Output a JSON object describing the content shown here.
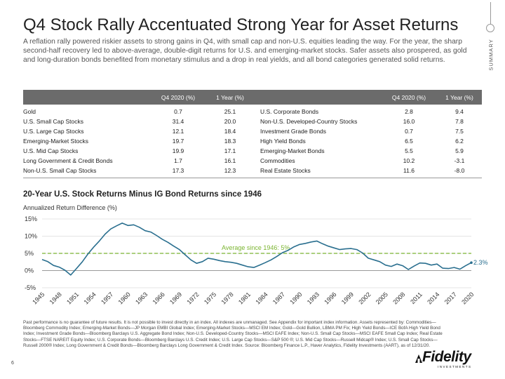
{
  "header": {
    "title": "Q4 Stock Rally Accentuated Strong Year for Asset Returns",
    "subtitle": "A reflation rally powered riskier assets to strong gains in Q4, with small cap and non-U.S. equities leading the way. For the year, the sharp second-half recovery led to above-average, double-digit returns for U.S. and emerging-market stocks. Safer assets also prospered, as gold and long-duration bonds benefited from monetary stimulus and a drop in real yields, and all bond categories generated solid returns.",
    "side_label": "SUMMARY"
  },
  "table": {
    "headers": [
      "Q4 2020 (%)",
      "1 Year (%)",
      "Q4 2020 (%)",
      "1 Year (%)"
    ],
    "left_rows": [
      {
        "name": "Gold",
        "q4": "0.7",
        "year": "25.1"
      },
      {
        "name": "U.S. Small Cap Stocks",
        "q4": "31.4",
        "year": "20.0"
      },
      {
        "name": "U.S. Large Cap Stocks",
        "q4": "12.1",
        "year": "18.4"
      },
      {
        "name": "Emerging-Market Stocks",
        "q4": "19.7",
        "year": "18.3"
      },
      {
        "name": "U.S. Mid Cap Stocks",
        "q4": "19.9",
        "year": "17.1"
      },
      {
        "name": "Long Government & Credit Bonds",
        "q4": "1.7",
        "year": "16.1"
      },
      {
        "name": "Non-U.S. Small Cap Stocks",
        "q4": "17.3",
        "year": "12.3"
      }
    ],
    "right_rows": [
      {
        "name": "U.S. Corporate Bonds",
        "q4": "2.8",
        "year": "9.4"
      },
      {
        "name": "Non-U.S. Developed-Country Stocks",
        "q4": "16.0",
        "year": "7.8"
      },
      {
        "name": "Investment Grade Bonds",
        "q4": "0.7",
        "year": "7.5"
      },
      {
        "name": "High Yield Bonds",
        "q4": "6.5",
        "year": "6.2"
      },
      {
        "name": "Emerging-Market Bonds",
        "q4": "5.5",
        "year": "5.9"
      },
      {
        "name": "Commodities",
        "q4": "10.2",
        "year": "-3.1"
      },
      {
        "name": "Real Estate Stocks",
        "q4": "11.6",
        "year": "-8.0"
      }
    ]
  },
  "chart_data": {
    "type": "line",
    "title": "20-Year U.S. Stock Returns Minus IG Bond Returns since 1946",
    "ylabel": "Annualized Return Difference (%)",
    "xlabel": "",
    "ylim": [
      -5,
      15
    ],
    "xlim": [
      1945,
      2020
    ],
    "y_ticks": [
      "-5%",
      "0%",
      "5%",
      "10%",
      "15%"
    ],
    "y_tick_values": [
      -5,
      0,
      5,
      10,
      15
    ],
    "x_ticks": [
      "1945",
      "1948",
      "1951",
      "1954",
      "1957",
      "1960",
      "1963",
      "1966",
      "1969",
      "1972",
      "1975",
      "1978",
      "1981",
      "1984",
      "1987",
      "1990",
      "1993",
      "1996",
      "1999",
      "2002",
      "2005",
      "2008",
      "2011",
      "2014",
      "2017",
      "2020"
    ],
    "series": [
      {
        "name": "20-Year U.S. Stock Returns Minus IG Bond Returns",
        "color": "#2a6f8f",
        "x": [
          1945,
          1946,
          1947,
          1948,
          1949,
          1950,
          1951,
          1952,
          1953,
          1954,
          1955,
          1956,
          1957,
          1958,
          1959,
          1960,
          1961,
          1962,
          1963,
          1964,
          1965,
          1966,
          1967,
          1968,
          1969,
          1970,
          1971,
          1972,
          1973,
          1974,
          1975,
          1976,
          1977,
          1978,
          1979,
          1980,
          1981,
          1982,
          1983,
          1984,
          1985,
          1986,
          1987,
          1988,
          1989,
          1990,
          1991,
          1992,
          1993,
          1994,
          1995,
          1996,
          1997,
          1998,
          1999,
          2000,
          2001,
          2002,
          2003,
          2004,
          2005,
          2006,
          2007,
          2008,
          2009,
          2010,
          2011,
          2012,
          2013,
          2014,
          2015,
          2016,
          2017,
          2018,
          2019,
          2020
        ],
        "values": [
          3.2,
          2.6,
          1.5,
          1.0,
          0.1,
          -1.3,
          0.6,
          2.5,
          4.8,
          6.8,
          8.6,
          10.6,
          12.1,
          13.0,
          13.8,
          13.1,
          13.3,
          12.6,
          11.6,
          11.2,
          10.2,
          9.1,
          8.2,
          7.1,
          6.1,
          4.6,
          3.1,
          2.1,
          2.6,
          3.6,
          3.3,
          2.9,
          2.6,
          2.4,
          2.1,
          1.6,
          1.1,
          0.9,
          1.6,
          2.3,
          3.1,
          4.1,
          5.2,
          5.9,
          6.9,
          7.6,
          7.9,
          8.3,
          8.6,
          7.8,
          7.1,
          6.6,
          6.1,
          6.3,
          6.4,
          6.1,
          5.1,
          3.6,
          3.1,
          2.6,
          1.6,
          1.2,
          1.9,
          1.4,
          0.3,
          1.3,
          2.2,
          2.1,
          1.6,
          1.9,
          0.7,
          0.6,
          0.9,
          0.4,
          1.4,
          2.3
        ]
      }
    ],
    "reference_line": {
      "label": "Average since 1946: 5%",
      "value": 5,
      "color": "#7bb531"
    },
    "end_label": "2.3%"
  },
  "footnote": {
    "text": "Past performance is no guarantee of future results. It is not possible to invest directly in an index. All indexes are unmanaged. See Appendix for important index information. Assets represented by: Commodities—Bloomberg Commodity Index; Emerging-Market Bonds—JP Morgan EMBI Global Index; Emerging-Market Stocks—MSCI EM Index; Gold—Gold Bullion, LBMA PM Fix; High Yield Bonds—ICE BofA High Yield Bond Index; Investment Grade Bonds—Bloomberg Barclays U.S. Aggregate Bond Index; Non-U.S. Developed-Country Stocks—MSCI EAFE Index; Non-U.S. Small Cap Stocks—MSCI EAFE Small Cap Index; Real Estate Stocks—FTSE NAREIT Equity Index; U.S. Corporate Bonds—Bloomberg Barclays U.S. Credit Index; U.S. Large Cap Stocks—S&P 500 ®; U.S. Mid Cap Stocks—Russell Midcap® Index; U.S. Small Cap Stocks—Russell 2000® Index; Long Government & Credit Bonds—Bloomberg Barclays Long Government & Credit Index. Source: Bloomberg Finance L.P., Haver Analytics, Fidelity Investments (AART), as of 12/31/20.",
    "page_number": "6"
  },
  "logo": {
    "name": "Fidelity",
    "tagline": "INVESTMENTS"
  }
}
